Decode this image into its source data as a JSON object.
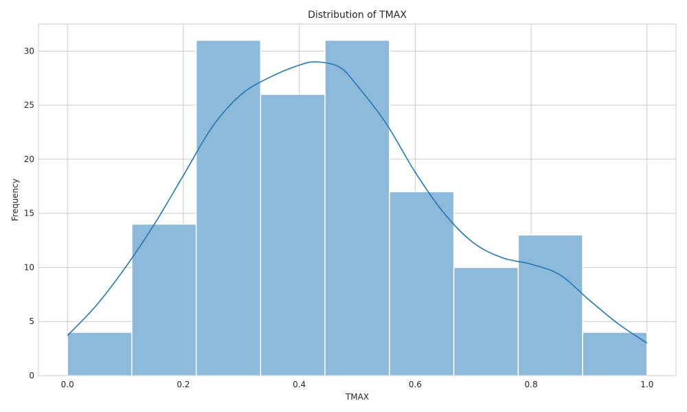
{
  "chart_data": {
    "type": "histogram",
    "title": "Distribution of TMAX",
    "xlabel": "TMAX",
    "ylabel": "Frequency",
    "xlim": [
      -0.05,
      1.05
    ],
    "ylim": [
      0,
      32.5
    ],
    "xticks": [
      0.0,
      0.2,
      0.4,
      0.6,
      0.8,
      1.0
    ],
    "xtick_labels": [
      "0.0",
      "0.2",
      "0.4",
      "0.6",
      "0.8",
      "1.0"
    ],
    "yticks": [
      0,
      5,
      10,
      15,
      20,
      25,
      30
    ],
    "ytick_labels": [
      "0",
      "5",
      "10",
      "15",
      "20",
      "25",
      "30"
    ],
    "grid": true,
    "bins": [
      {
        "start": 0.0,
        "end": 0.1111,
        "count": 4
      },
      {
        "start": 0.1111,
        "end": 0.2222,
        "count": 14
      },
      {
        "start": 0.2222,
        "end": 0.3333,
        "count": 31
      },
      {
        "start": 0.3333,
        "end": 0.4444,
        "count": 26
      },
      {
        "start": 0.4444,
        "end": 0.5556,
        "count": 31
      },
      {
        "start": 0.5556,
        "end": 0.6667,
        "count": 17
      },
      {
        "start": 0.6667,
        "end": 0.7778,
        "count": 10
      },
      {
        "start": 0.7778,
        "end": 0.8889,
        "count": 13
      },
      {
        "start": 0.8889,
        "end": 1.0,
        "count": 4
      }
    ],
    "kde": [
      [
        0.0,
        3.7
      ],
      [
        0.05,
        6.5
      ],
      [
        0.1,
        10.0
      ],
      [
        0.15,
        14.0
      ],
      [
        0.2,
        18.5
      ],
      [
        0.25,
        23.0
      ],
      [
        0.3,
        26.0
      ],
      [
        0.35,
        27.6
      ],
      [
        0.4,
        28.7
      ],
      [
        0.43,
        29.0
      ],
      [
        0.47,
        28.5
      ],
      [
        0.5,
        26.8
      ],
      [
        0.55,
        23.3
      ],
      [
        0.6,
        18.8
      ],
      [
        0.65,
        15.0
      ],
      [
        0.7,
        12.3
      ],
      [
        0.75,
        10.9
      ],
      [
        0.8,
        10.3
      ],
      [
        0.85,
        9.3
      ],
      [
        0.9,
        7.0
      ],
      [
        0.95,
        4.8
      ],
      [
        1.0,
        3.0
      ]
    ],
    "colors": {
      "bar_fill": "#8db9da",
      "bar_edge": "#ffffff",
      "kde_line": "#1f77b4",
      "grid": "#cccccc",
      "spine": "#cccccc"
    }
  }
}
